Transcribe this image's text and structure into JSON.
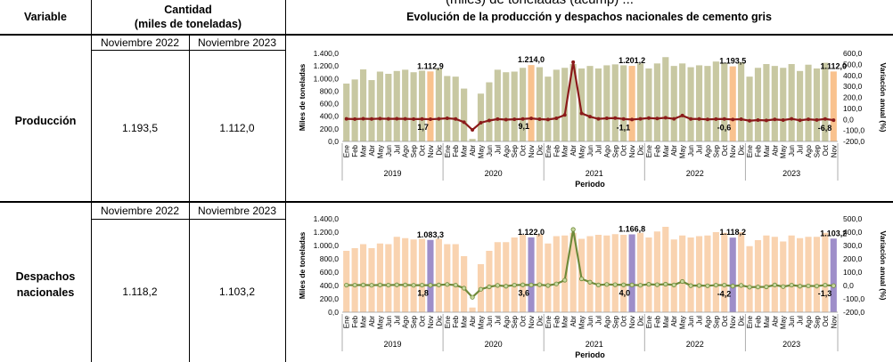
{
  "cut_title": "(miles) de toneladas (acump) ...",
  "header": {
    "variable": "Variable",
    "cantidad_line1": "Cantidad",
    "cantidad_line2": "(miles de toneladas)",
    "chart_title": "Evolución de la producción y despachos nacionales de cemento gris"
  },
  "rows": [
    {
      "name": "Producción",
      "col1_label": "Noviembre 2022",
      "col2_label": "Noviembre 2023",
      "val1": "1.193,5",
      "val2": "1.112,0"
    },
    {
      "name": "Despachos nacionales",
      "name_line1": "Despachos",
      "name_line2": "nacionales",
      "col1_label": "Noviembre 2022",
      "col2_label": "Noviembre 2023",
      "val1": "1.118,2",
      "val2": "1.103,2"
    }
  ],
  "colors": {
    "prod_bar": "#c8c8a2",
    "prod_highlight": "#f9c28e",
    "prod_line": "#8b1a1a",
    "desp_bar": "#f9d3b0",
    "desp_highlight": "#9e8ec9",
    "desp_line": "#6f8a3a",
    "desp_marker": "#c8d8a0"
  },
  "chart_data": [
    {
      "type": "bar",
      "xlabel": "Periodo",
      "ylabel": "Miles de toneladas",
      "y2label": "Variación anual (%)",
      "ylim": [
        0,
        1400
      ],
      "y2lim": [
        -200,
        600
      ],
      "yticks": [
        "0,0",
        "200,0",
        "400,0",
        "600,0",
        "800,0",
        "1.000,0",
        "1.200,0",
        "1.400,0"
      ],
      "y2ticks": [
        "-200,0",
        "-100,0",
        "0,0",
        "100,0",
        "200,0",
        "300,0",
        "400,0",
        "500,0",
        "600,0"
      ],
      "months": [
        "Ene",
        "Feb",
        "Mar",
        "Abr",
        "May",
        "Jun",
        "Jul",
        "Ago",
        "Sep",
        "Oct",
        "Nov",
        "Dic"
      ],
      "years": [
        "2019",
        "2020",
        "2021",
        "2022",
        "2023"
      ],
      "series": [
        {
          "name": "Miles de toneladas",
          "values": [
            920,
            985,
            1145,
            975,
            1110,
            1075,
            1120,
            1140,
            1100,
            1125,
            1112.9,
            1160,
            1040,
            1030,
            840,
            40,
            760,
            940,
            1140,
            1100,
            1110,
            1170,
            1214.0,
            1180,
            1030,
            1140,
            1170,
            1230,
            1160,
            1200,
            1160,
            1210,
            1225,
            1210,
            1201.2,
            1240,
            1160,
            1240,
            1340,
            1200,
            1240,
            1180,
            1210,
            1200,
            1270,
            1250,
            1193.5,
            1260,
            1030,
            1170,
            1230,
            1200,
            1170,
            1230,
            1120,
            1220,
            1160,
            1250,
            1112.0
          ]
        },
        {
          "name": "Variación anual (%)",
          "values": [
            5,
            3,
            6,
            4,
            7,
            5,
            6,
            5,
            3,
            4,
            1.7,
            5,
            10,
            4,
            -25,
            -95,
            -30,
            -10,
            3,
            -2,
            1,
            4,
            9.1,
            2,
            -1,
            10,
            40,
            520,
            55,
            25,
            5,
            10,
            12,
            4,
            -1.1,
            5,
            12,
            8,
            15,
            5,
            35,
            4,
            4,
            0,
            3,
            4,
            -0.6,
            2,
            -12,
            -6,
            -9,
            0,
            -6,
            5,
            -8,
            1,
            -5,
            4,
            -6.8
          ]
        }
      ],
      "highlights": [
        10,
        22,
        34,
        46,
        58
      ],
      "bar_labels": [
        "1.112,9",
        "1.214,0",
        "1.201,2",
        "1.193,5",
        "1.112,0"
      ],
      "pct_labels": [
        "1,7",
        "9,1",
        "-1,1",
        "-0,6",
        "-6,8"
      ]
    },
    {
      "type": "bar",
      "xlabel": "Periodo",
      "ylabel": "Miles de toneladas",
      "y2label": "Variación anual (%)",
      "ylim": [
        0,
        1400
      ],
      "y2lim": [
        -200,
        500
      ],
      "yticks": [
        "0,0",
        "200,0",
        "400,0",
        "600,0",
        "800,0",
        "1.000,0",
        "1.200,0",
        "1.400,0"
      ],
      "y2ticks": [
        "-200,0",
        "-100,0",
        "0,0",
        "100,0",
        "200,0",
        "300,0",
        "400,0",
        "500,0"
      ],
      "months": [
        "Ene",
        "Feb",
        "Mar",
        "Abr",
        "May",
        "Jun",
        "Jul",
        "Ago",
        "Sep",
        "Oct",
        "Nov",
        "Dic"
      ],
      "years": [
        "2019",
        "2020",
        "2021",
        "2022",
        "2023"
      ],
      "series": [
        {
          "name": "Miles de toneladas",
          "values": [
            920,
            960,
            1020,
            960,
            1030,
            1020,
            1130,
            1110,
            1090,
            1100,
            1083.3,
            1100,
            1020,
            1020,
            840,
            70,
            720,
            920,
            1050,
            1050,
            1120,
            1160,
            1122.0,
            1170,
            1030,
            1140,
            1150,
            1190,
            1100,
            1140,
            1160,
            1150,
            1170,
            1160,
            1166.8,
            1190,
            1120,
            1210,
            1280,
            1090,
            1150,
            1120,
            1140,
            1150,
            1200,
            1190,
            1118.2,
            1200,
            990,
            1080,
            1150,
            1130,
            1060,
            1150,
            1110,
            1130,
            1130,
            1190,
            1103.2
          ]
        },
        {
          "name": "Variación anual (%)",
          "values": [
            3,
            3,
            4,
            2,
            4,
            3,
            5,
            4,
            2,
            3,
            1.8,
            4,
            8,
            3,
            -20,
            -88,
            -28,
            -10,
            1,
            -5,
            3,
            5,
            3.6,
            6,
            0,
            12,
            40,
            420,
            50,
            25,
            4,
            8,
            6,
            5,
            4.0,
            2,
            9,
            6,
            10,
            4,
            30,
            -1,
            0,
            -2,
            3,
            3,
            -4.2,
            1,
            -12,
            -11,
            -10,
            4,
            -8,
            3,
            -5,
            -3,
            -4,
            3,
            -1.3
          ]
        }
      ],
      "highlights": [
        10,
        22,
        34,
        46,
        58
      ],
      "bar_labels": [
        "1.083,3",
        "1.122,0",
        "1.166,8",
        "1.118,2",
        "1.103,2"
      ],
      "pct_labels": [
        "1,8",
        "3,6",
        "4,0",
        "-4,2",
        "-1,3"
      ]
    }
  ]
}
